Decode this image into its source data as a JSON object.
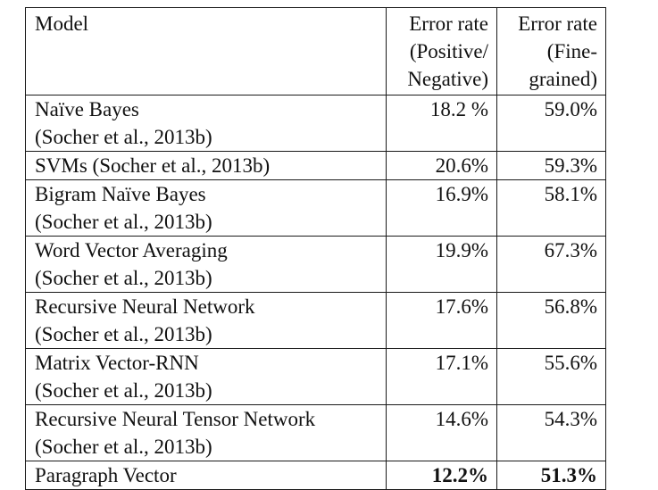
{
  "table": {
    "headers": {
      "model": [
        "Model"
      ],
      "pos_neg": [
        "Error rate",
        "(Positive/",
        "Negative)"
      ],
      "fine": [
        "Error rate",
        "(Fine-",
        "grained)"
      ]
    },
    "rows": [
      {
        "model": [
          "Naïve Bayes",
          "(Socher et al., 2013b)"
        ],
        "pos_neg": "18.2 %",
        "fine": "59.0%",
        "bold": false
      },
      {
        "model": [
          "SVMs (Socher et al., 2013b)"
        ],
        "pos_neg": "20.6%",
        "fine": "59.3%",
        "bold": false
      },
      {
        "model": [
          "Bigram Naïve Bayes",
          "(Socher et al., 2013b)"
        ],
        "pos_neg": "16.9%",
        "fine": "58.1%",
        "bold": false
      },
      {
        "model": [
          "Word Vector Averaging",
          "(Socher et al., 2013b)"
        ],
        "pos_neg": "19.9%",
        "fine": "67.3%",
        "bold": false
      },
      {
        "model": [
          "Recursive Neural Network",
          "(Socher et al., 2013b)"
        ],
        "pos_neg": "17.6%",
        "fine": "56.8%",
        "bold": false
      },
      {
        "model": [
          "Matrix Vector-RNN",
          "(Socher et al., 2013b)"
        ],
        "pos_neg": "17.1%",
        "fine": "55.6%",
        "bold": false
      },
      {
        "model": [
          "Recursive Neural Tensor Network",
          "(Socher et al., 2013b)"
        ],
        "pos_neg": "14.6%",
        "fine": "54.3%",
        "bold": false
      },
      {
        "model": [
          "Paragraph Vector"
        ],
        "pos_neg": "12.2%",
        "fine": "51.3%",
        "bold": true
      }
    ]
  }
}
